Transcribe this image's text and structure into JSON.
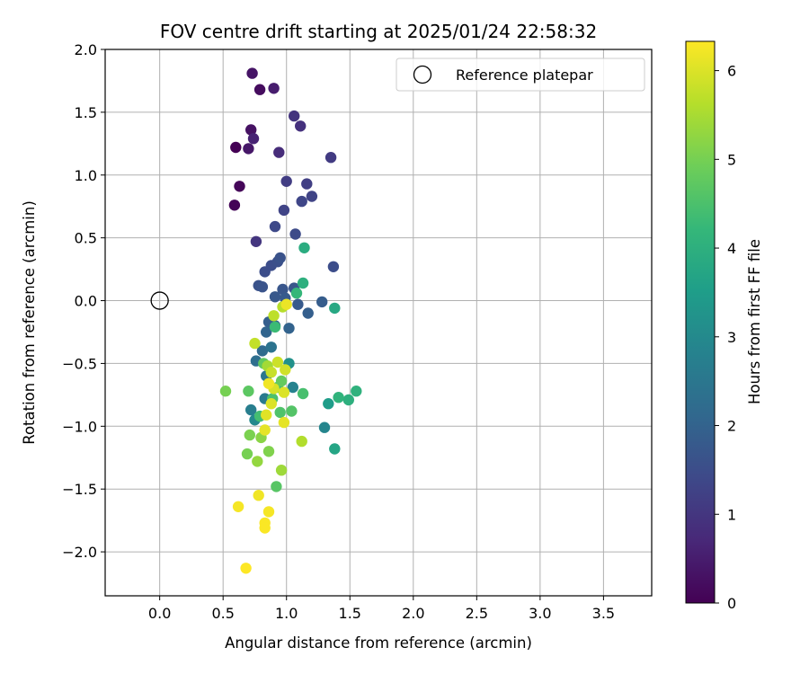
{
  "chart_data": {
    "type": "scatter",
    "title": "FOV centre drift starting at 2025/01/24 22:58:32",
    "xlabel": "Angular distance from reference (arcmin)",
    "ylabel": "Rotation from reference (arcmin)",
    "xlim": [
      -0.43,
      3.88
    ],
    "ylim": [
      -2.35,
      2.0
    ],
    "x_ticks": [
      0.0,
      0.5,
      1.0,
      1.5,
      2.0,
      2.5,
      3.0,
      3.5
    ],
    "x_tick_labels": [
      "0.0",
      "0.5",
      "1.0",
      "1.5",
      "2.0",
      "2.5",
      "3.0",
      "3.5"
    ],
    "y_ticks": [
      2.0,
      1.5,
      1.0,
      0.5,
      0.0,
      -0.5,
      -1.0,
      -1.5,
      -2.0
    ],
    "y_tick_labels": [
      "2.0",
      "1.5",
      "1.0",
      "0.5",
      "0.0",
      "−0.5",
      "−1.0",
      "−1.5",
      "−2.0"
    ],
    "grid": true,
    "legend": {
      "placement": "top-right",
      "entries": [
        "Reference platepar"
      ]
    },
    "reference_point": {
      "x": 0.0,
      "y": 0.0,
      "label": "Reference platepar"
    },
    "colorbar": {
      "label": "Hours from first FF file",
      "range": [
        0,
        6.33
      ],
      "ticks": [
        0,
        1,
        2,
        3,
        4,
        5,
        6
      ],
      "tick_labels": [
        "0",
        "1",
        "2",
        "3",
        "4",
        "5",
        "6"
      ],
      "colormap": "viridis"
    },
    "colormap_stops": [
      "#440154",
      "#482878",
      "#3e4989",
      "#31688e",
      "#26828e",
      "#1f9e89",
      "#35b779",
      "#6ece58",
      "#b5de2b",
      "#fde725"
    ],
    "points": [
      {
        "x": 0.6,
        "y": 1.22,
        "t": 0.0
      },
      {
        "x": 0.59,
        "y": 0.76,
        "t": 0.05
      },
      {
        "x": 0.63,
        "y": 0.91,
        "t": 0.1
      },
      {
        "x": 0.79,
        "y": 1.68,
        "t": 0.2
      },
      {
        "x": 0.72,
        "y": 1.36,
        "t": 0.3
      },
      {
        "x": 0.73,
        "y": 1.81,
        "t": 0.35
      },
      {
        "x": 0.7,
        "y": 1.21,
        "t": 0.4
      },
      {
        "x": 0.9,
        "y": 1.69,
        "t": 0.5
      },
      {
        "x": 0.74,
        "y": 1.29,
        "t": 0.6
      },
      {
        "x": 0.94,
        "y": 1.18,
        "t": 0.8
      },
      {
        "x": 1.11,
        "y": 1.39,
        "t": 0.9
      },
      {
        "x": 1.06,
        "y": 1.47,
        "t": 0.95
      },
      {
        "x": 0.76,
        "y": 0.47,
        "t": 1.0
      },
      {
        "x": 1.35,
        "y": 1.14,
        "t": 1.1
      },
      {
        "x": 1.0,
        "y": 0.95,
        "t": 1.15
      },
      {
        "x": 1.16,
        "y": 0.93,
        "t": 1.2
      },
      {
        "x": 1.2,
        "y": 0.83,
        "t": 1.3
      },
      {
        "x": 0.98,
        "y": 0.72,
        "t": 1.3
      },
      {
        "x": 1.12,
        "y": 0.79,
        "t": 1.35
      },
      {
        "x": 0.91,
        "y": 0.59,
        "t": 1.4
      },
      {
        "x": 1.07,
        "y": 0.53,
        "t": 1.45
      },
      {
        "x": 1.37,
        "y": 0.27,
        "t": 1.5
      },
      {
        "x": 0.88,
        "y": 0.28,
        "t": 1.5
      },
      {
        "x": 0.83,
        "y": 0.23,
        "t": 1.5
      },
      {
        "x": 0.93,
        "y": 0.31,
        "t": 1.55
      },
      {
        "x": 0.95,
        "y": 0.34,
        "t": 1.6
      },
      {
        "x": 0.78,
        "y": 0.12,
        "t": 1.6
      },
      {
        "x": 0.81,
        "y": 0.11,
        "t": 1.65
      },
      {
        "x": 0.97,
        "y": 0.09,
        "t": 1.7
      },
      {
        "x": 1.06,
        "y": 0.1,
        "t": 1.7
      },
      {
        "x": 0.91,
        "y": 0.03,
        "t": 1.75
      },
      {
        "x": 0.99,
        "y": 0.02,
        "t": 1.8
      },
      {
        "x": 1.09,
        "y": -0.03,
        "t": 1.8
      },
      {
        "x": 1.28,
        "y": -0.01,
        "t": 1.85
      },
      {
        "x": 1.17,
        "y": -0.1,
        "t": 1.9
      },
      {
        "x": 0.86,
        "y": -0.17,
        "t": 1.9
      },
      {
        "x": 0.91,
        "y": -0.2,
        "t": 1.95
      },
      {
        "x": 1.02,
        "y": -0.22,
        "t": 2.0
      },
      {
        "x": 0.84,
        "y": -0.25,
        "t": 2.05
      },
      {
        "x": 0.81,
        "y": -0.4,
        "t": 2.2
      },
      {
        "x": 0.76,
        "y": -0.48,
        "t": 2.3
      },
      {
        "x": 0.88,
        "y": -0.37,
        "t": 2.4
      },
      {
        "x": 0.84,
        "y": -0.6,
        "t": 2.5
      },
      {
        "x": 0.83,
        "y": -0.78,
        "t": 2.6
      },
      {
        "x": 0.72,
        "y": -0.87,
        "t": 2.7
      },
      {
        "x": 1.05,
        "y": -0.69,
        "t": 2.8
      },
      {
        "x": 1.3,
        "y": -1.01,
        "t": 2.9
      },
      {
        "x": 0.75,
        "y": -0.95,
        "t": 3.0
      },
      {
        "x": 1.02,
        "y": -0.5,
        "t": 3.2
      },
      {
        "x": 1.33,
        "y": -0.82,
        "t": 3.5
      },
      {
        "x": 1.38,
        "y": -1.18,
        "t": 3.7
      },
      {
        "x": 1.38,
        "y": -0.06,
        "t": 3.8
      },
      {
        "x": 1.14,
        "y": 0.42,
        "t": 3.9
      },
      {
        "x": 1.13,
        "y": 0.14,
        "t": 4.0
      },
      {
        "x": 1.49,
        "y": -0.79,
        "t": 4.0
      },
      {
        "x": 1.55,
        "y": -0.72,
        "t": 4.05
      },
      {
        "x": 1.41,
        "y": -0.77,
        "t": 4.1
      },
      {
        "x": 1.08,
        "y": 0.06,
        "t": 4.2
      },
      {
        "x": 0.91,
        "y": -0.21,
        "t": 4.3
      },
      {
        "x": 0.93,
        "y": -0.69,
        "t": 4.35
      },
      {
        "x": 0.79,
        "y": -0.92,
        "t": 4.4
      },
      {
        "x": 1.13,
        "y": -0.74,
        "t": 4.45
      },
      {
        "x": 0.89,
        "y": -0.78,
        "t": 4.5
      },
      {
        "x": 0.95,
        "y": -0.89,
        "t": 4.55
      },
      {
        "x": 1.04,
        "y": -0.88,
        "t": 4.6
      },
      {
        "x": 0.92,
        "y": -1.48,
        "t": 4.65
      },
      {
        "x": 0.7,
        "y": -0.72,
        "t": 4.7
      },
      {
        "x": 0.82,
        "y": -0.5,
        "t": 4.75
      },
      {
        "x": 0.96,
        "y": -0.64,
        "t": 4.8
      },
      {
        "x": 0.52,
        "y": -0.72,
        "t": 5.0
      },
      {
        "x": 0.69,
        "y": -1.22,
        "t": 5.0
      },
      {
        "x": 0.71,
        "y": -1.07,
        "t": 5.05
      },
      {
        "x": 0.86,
        "y": -1.2,
        "t": 5.1
      },
      {
        "x": 0.8,
        "y": -1.09,
        "t": 5.2
      },
      {
        "x": 0.77,
        "y": -1.28,
        "t": 5.3
      },
      {
        "x": 0.96,
        "y": -1.35,
        "t": 5.4
      },
      {
        "x": 0.85,
        "y": -0.52,
        "t": 5.45
      },
      {
        "x": 1.12,
        "y": -1.12,
        "t": 5.6
      },
      {
        "x": 0.97,
        "y": -0.05,
        "t": 5.65
      },
      {
        "x": 0.9,
        "y": -0.12,
        "t": 5.7
      },
      {
        "x": 0.75,
        "y": -0.34,
        "t": 5.75
      },
      {
        "x": 0.88,
        "y": -0.57,
        "t": 5.8
      },
      {
        "x": 0.93,
        "y": -0.49,
        "t": 5.85
      },
      {
        "x": 0.99,
        "y": -0.55,
        "t": 5.9
      },
      {
        "x": 0.9,
        "y": -0.7,
        "t": 5.95
      },
      {
        "x": 0.88,
        "y": -0.82,
        "t": 6.0
      },
      {
        "x": 0.98,
        "y": -0.73,
        "t": 6.0
      },
      {
        "x": 0.84,
        "y": -0.91,
        "t": 6.05
      },
      {
        "x": 0.83,
        "y": -1.03,
        "t": 6.1
      },
      {
        "x": 0.98,
        "y": -0.97,
        "t": 6.1
      },
      {
        "x": 1.0,
        "y": -0.03,
        "t": 6.15
      },
      {
        "x": 0.86,
        "y": -0.66,
        "t": 6.2
      },
      {
        "x": 0.78,
        "y": -1.55,
        "t": 6.2
      },
      {
        "x": 0.62,
        "y": -1.64,
        "t": 6.25
      },
      {
        "x": 0.86,
        "y": -1.68,
        "t": 6.25
      },
      {
        "x": 0.83,
        "y": -1.77,
        "t": 6.3
      },
      {
        "x": 0.83,
        "y": -1.81,
        "t": 6.3
      },
      {
        "x": 0.68,
        "y": -2.13,
        "t": 6.33
      }
    ]
  }
}
